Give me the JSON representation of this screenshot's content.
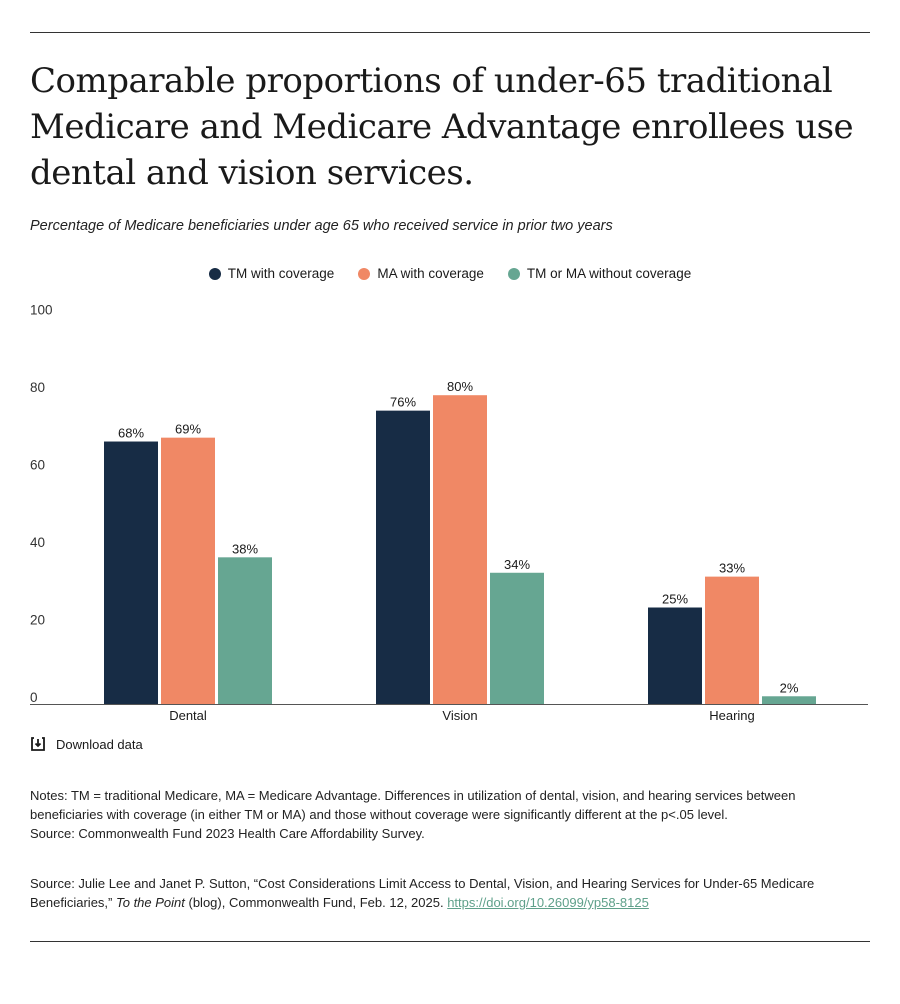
{
  "title": "Comparable proportions of under-65 traditional Medicare and Medicare Advantage enrollees use dental and vision services.",
  "subtitle": "Percentage of Medicare beneficiaries under age 65 who received service in prior two years",
  "download_label": "Download data",
  "notes": "Notes: TM = traditional Medicare, MA = Medicare Advantage. Differences in utilization of dental, vision, and hearing services between beneficiaries with coverage (in either TM or MA) and those without coverage were significantly different at the p<.05 level.",
  "notes_source": "Source: Commonwealth Fund 2023 Health Care Affordability Survey.",
  "source": {
    "prefix": "Source: Julie Lee and Janet P. Sutton, “Cost Considerations Limit Access to Dental, Vision, and Hearing Services for Under-65 Medicare Beneficiaries,” ",
    "italic": "To the Point",
    "suffix": " (blog), Commonwealth Fund, Feb. 12, 2025. ",
    "link": "https://doi.org/10.26099/yp58-8125"
  },
  "chart_data": {
    "type": "bar",
    "categories": [
      "Dental",
      "Vision",
      "Hearing"
    ],
    "series": [
      {
        "name": "TM with coverage",
        "color": "#172c45",
        "values": [
          68,
          76,
          25
        ]
      },
      {
        "name": "MA with coverage",
        "color": "#f08865",
        "values": [
          69,
          80,
          33
        ]
      },
      {
        "name": "TM or MA without coverage",
        "color": "#66a692",
        "values": [
          38,
          34,
          2
        ]
      }
    ],
    "value_labels": [
      [
        "68%",
        "76%",
        "25%"
      ],
      [
        "69%",
        "80%",
        "33%"
      ],
      [
        "38%",
        "34%",
        "2%"
      ]
    ],
    "yticks": [
      "0",
      "20",
      "40",
      "60",
      "80",
      "100"
    ],
    "ylim": [
      0,
      100
    ],
    "legend": "top-center",
    "grid": false
  }
}
